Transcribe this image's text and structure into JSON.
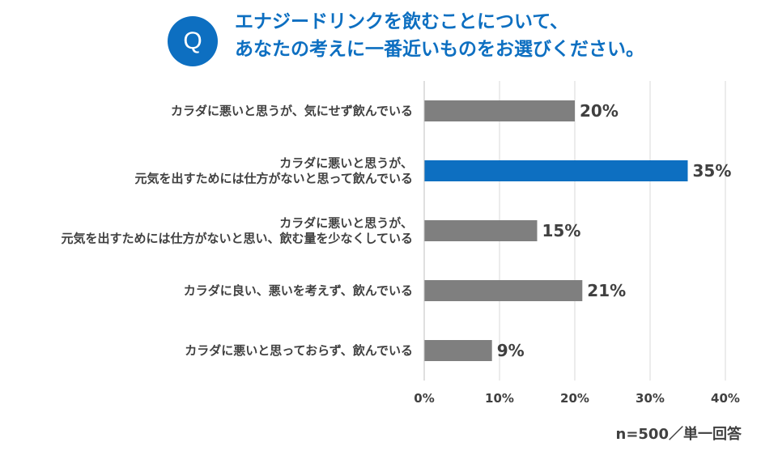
{
  "header": {
    "q_label": "Q",
    "title_lines": [
      "エナジードリンクを飲むことについて、",
      "あなたの考えに一番近いものをお選びください。"
    ]
  },
  "chart_data": {
    "type": "bar",
    "orientation": "horizontal",
    "categories": [
      [
        "カラダに悪いと思うが、気にせず飲んでいる"
      ],
      [
        "カラダに悪いと思うが、",
        "元気を出すためには仕方がないと思って飲んでいる"
      ],
      [
        "カラダに悪いと思うが、",
        "元気を出すためには仕方がないと思い、飲む量を少なくしている"
      ],
      [
        "カラダに良い、悪いを考えず、飲んでいる"
      ],
      [
        "カラダに悪いと思っておらず、飲んでいる"
      ]
    ],
    "values": [
      20,
      35,
      15,
      21,
      9
    ],
    "value_labels": [
      "20%",
      "35%",
      "15%",
      "21%",
      "9%"
    ],
    "highlight_index": 1,
    "xlim": [
      0,
      40
    ],
    "xticks": [
      0,
      10,
      20,
      30,
      40
    ],
    "xtick_labels": [
      "0%",
      "10%",
      "20%",
      "30%",
      "40%"
    ],
    "grid": "vertical",
    "colors": {
      "bar": "#7f7f7f",
      "highlight": "#0d6fc1"
    }
  },
  "footer": {
    "note": "n=500／単一回答"
  }
}
